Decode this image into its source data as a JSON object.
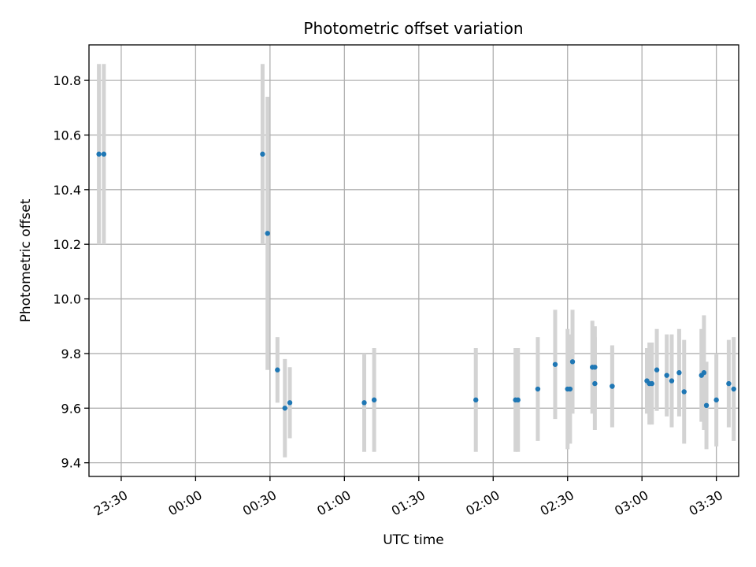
{
  "chart_data": {
    "type": "scatter",
    "title": "Photometric offset variation",
    "xlabel": "UTC time",
    "ylabel": "Photometric offset",
    "x_unit": "time (HH:MM UTC)",
    "xlim": [
      "23:17",
      "03:39"
    ],
    "ylim": [
      9.35,
      10.93
    ],
    "grid": true,
    "xticks": [
      "23:30",
      "00:00",
      "00:30",
      "01:00",
      "01:30",
      "02:00",
      "02:30",
      "03:00",
      "03:30"
    ],
    "xtick_times": [
      "23:30",
      "00:00",
      "00:30",
      "01:00",
      "01:30",
      "02:00",
      "02:30",
      "03:00",
      "03:30"
    ],
    "yticks": [
      9.4,
      9.6,
      9.8,
      10.0,
      10.2,
      10.4,
      10.6,
      10.8
    ],
    "ytick_labels": [
      "9.4",
      "9.6",
      "9.8",
      "10.0",
      "10.2",
      "10.4",
      "10.6",
      "10.8"
    ],
    "marker_color": "#1f77b4",
    "errorbar_color": "#d3d3d3",
    "points": [
      {
        "time": "23:21",
        "y": 10.53,
        "err": 0.33
      },
      {
        "time": "23:23",
        "y": 10.53,
        "err": 0.33
      },
      {
        "time": "00:27",
        "y": 10.53,
        "err": 0.33
      },
      {
        "time": "00:29",
        "y": 10.24,
        "err": 0.5
      },
      {
        "time": "00:33",
        "y": 9.74,
        "err": 0.12
      },
      {
        "time": "00:36",
        "y": 9.6,
        "err": 0.18
      },
      {
        "time": "00:38",
        "y": 9.62,
        "err": 0.13
      },
      {
        "time": "01:08",
        "y": 9.62,
        "err": 0.18
      },
      {
        "time": "01:12",
        "y": 9.63,
        "err": 0.19
      },
      {
        "time": "01:53",
        "y": 9.63,
        "err": 0.19
      },
      {
        "time": "02:09",
        "y": 9.63,
        "err": 0.19
      },
      {
        "time": "02:10",
        "y": 9.63,
        "err": 0.19
      },
      {
        "time": "02:18",
        "y": 9.67,
        "err": 0.19
      },
      {
        "time": "02:25",
        "y": 9.76,
        "err": 0.2
      },
      {
        "time": "02:30",
        "y": 9.67,
        "err": 0.22
      },
      {
        "time": "02:31",
        "y": 9.67,
        "err": 0.2
      },
      {
        "time": "02:32",
        "y": 9.77,
        "err": 0.19
      },
      {
        "time": "02:40",
        "y": 9.75,
        "err": 0.17
      },
      {
        "time": "02:41",
        "y": 9.75,
        "err": 0.15
      },
      {
        "time": "02:41",
        "y": 9.69,
        "err": 0.17
      },
      {
        "time": "02:48",
        "y": 9.68,
        "err": 0.15
      },
      {
        "time": "02:48",
        "y": 9.68,
        "err": 0.14
      },
      {
        "time": "03:02",
        "y": 9.7,
        "err": 0.12
      },
      {
        "time": "03:03",
        "y": 9.69,
        "err": 0.15
      },
      {
        "time": "03:04",
        "y": 9.69,
        "err": 0.15
      },
      {
        "time": "03:06",
        "y": 9.74,
        "err": 0.15
      },
      {
        "time": "03:10",
        "y": 9.72,
        "err": 0.15
      },
      {
        "time": "03:12",
        "y": 9.7,
        "err": 0.17
      },
      {
        "time": "03:15",
        "y": 9.73,
        "err": 0.16
      },
      {
        "time": "03:17",
        "y": 9.66,
        "err": 0.19
      },
      {
        "time": "03:24",
        "y": 9.72,
        "err": 0.17
      },
      {
        "time": "03:25",
        "y": 9.73,
        "err": 0.21
      },
      {
        "time": "03:26",
        "y": 9.61,
        "err": 0.16
      },
      {
        "time": "03:30",
        "y": 9.63,
        "err": 0.17
      },
      {
        "time": "03:35",
        "y": 9.69,
        "err": 0.16
      },
      {
        "time": "03:37",
        "y": 9.67,
        "err": 0.19
      }
    ]
  }
}
